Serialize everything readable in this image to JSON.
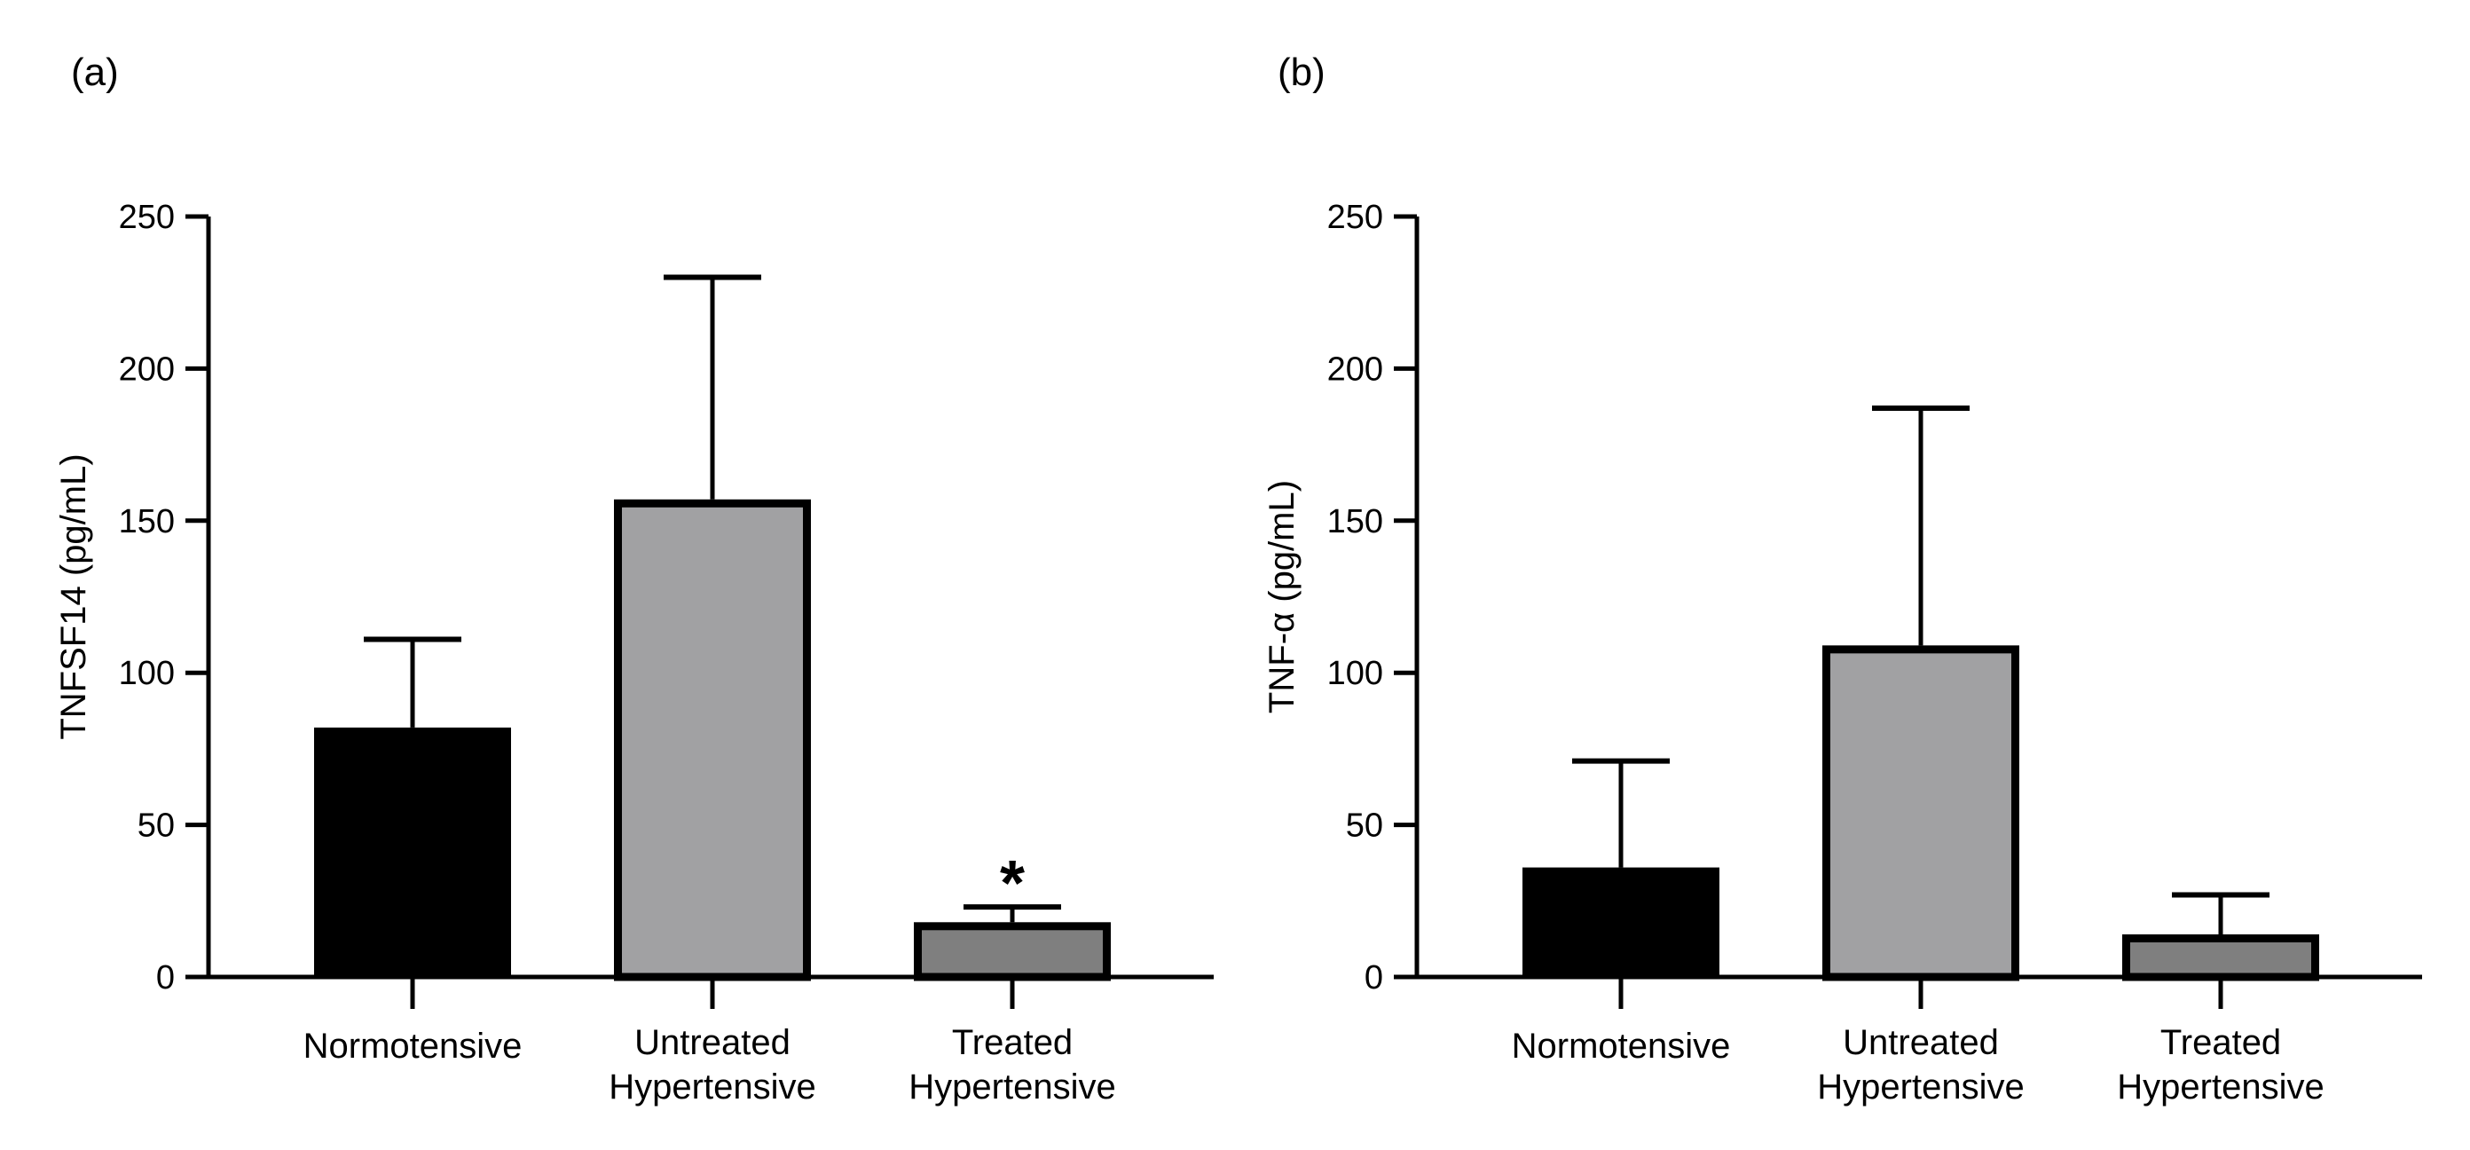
{
  "chart_data": [
    {
      "panel_label": "(a)",
      "type": "bar",
      "title": "",
      "xlabel": "",
      "ylabel": "TNFSF14  (pg/mL)",
      "ylim": [
        0,
        250
      ],
      "yticks": [
        0,
        50,
        100,
        150,
        200,
        250
      ],
      "ytick_labels": [
        "0",
        "50",
        "100",
        "150",
        "200",
        "250"
      ],
      "categories": [
        [
          "Normotensive"
        ],
        [
          "Untreated",
          "Hypertensive"
        ],
        [
          "Treated",
          "Hypertensive"
        ]
      ],
      "values": [
        82,
        157,
        18
      ],
      "error_upper": [
        111,
        230,
        23
      ],
      "bar_colors": [
        "#000000",
        "#a1a1a3",
        "#7f7f7f"
      ],
      "annotations": [
        {
          "category_index": 2,
          "text": "*"
        }
      ]
    },
    {
      "panel_label": "(b)",
      "type": "bar",
      "title": "",
      "xlabel": "",
      "ylabel": "TNF-α  (pg/mL)",
      "ylim": [
        0,
        250
      ],
      "yticks": [
        0,
        50,
        100,
        150,
        200,
        250
      ],
      "ytick_labels": [
        "0",
        "50",
        "100",
        "150",
        "200",
        "250"
      ],
      "categories": [
        [
          "Normotensive"
        ],
        [
          "Untreated",
          "Hypertensive"
        ],
        [
          "Treated",
          "Hypertensive"
        ]
      ],
      "values": [
        36,
        109,
        14
      ],
      "error_upper": [
        71,
        187,
        27
      ],
      "bar_colors": [
        "#000000",
        "#a1a1a3",
        "#7f7f7f"
      ],
      "annotations": []
    }
  ]
}
